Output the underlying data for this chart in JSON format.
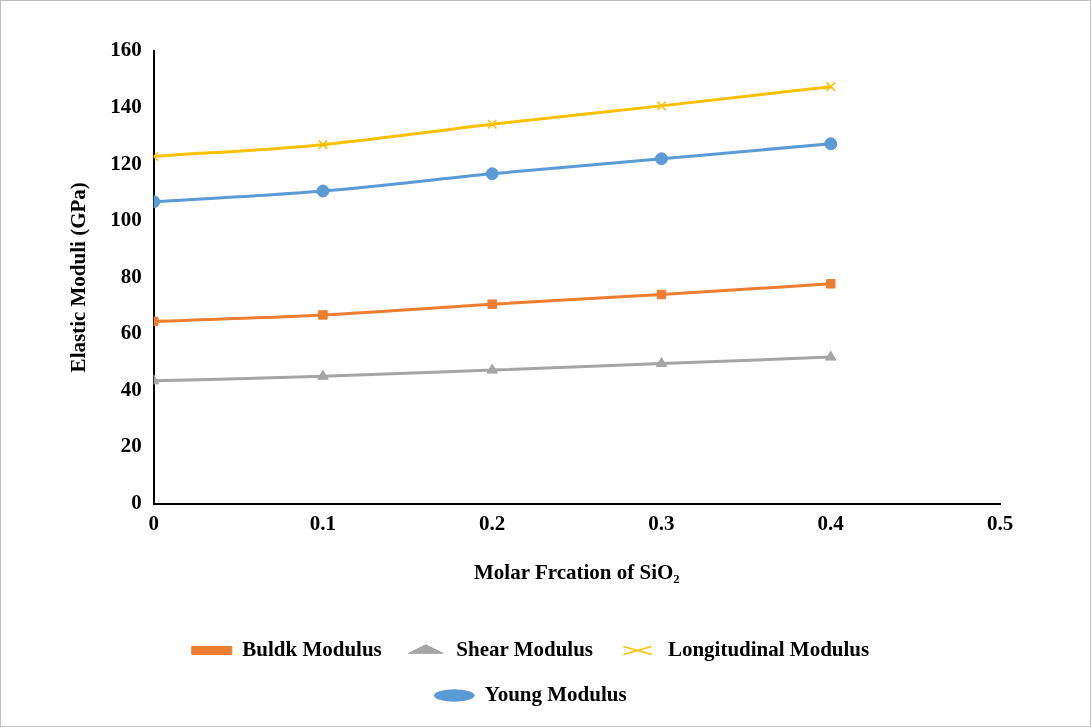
{
  "chart_data": {
    "type": "line",
    "xlabel": "Molar Frcation of SiO₂",
    "ylabel": "Elastic Moduli (GPa)",
    "x": [
      0,
      0.1,
      0.2,
      0.3,
      0.4
    ],
    "xlim": [
      0,
      0.5
    ],
    "xticks": [
      0,
      0.1,
      0.2,
      0.3,
      0.4,
      0.5
    ],
    "ylim": [
      0,
      160
    ],
    "yticks": [
      0,
      20,
      40,
      60,
      80,
      100,
      120,
      140,
      160
    ],
    "grid": false,
    "legend": "bottom",
    "line_style": "solid",
    "series": [
      {
        "name": "Buldk Modulus",
        "color": "#ed7d31",
        "marker": "square",
        "values": [
          64.4,
          66.7,
          70.5,
          73.9,
          77.7
        ]
      },
      {
        "name": "Shear Modulus",
        "color": "#a5a5a5",
        "marker": "triangle",
        "values": [
          43.4,
          45,
          47.2,
          49.5,
          51.8
        ]
      },
      {
        "name": "Longitudinal Modulus",
        "color": "#ffc000",
        "marker": "cross",
        "values": [
          122.7,
          126.9,
          134.1,
          140.6,
          147.4
        ]
      },
      {
        "name": "Young Modulus",
        "color": "#5b9bd5",
        "marker": "circle",
        "values": [
          106.7,
          110.5,
          116.6,
          121.9,
          127.2
        ]
      }
    ]
  }
}
